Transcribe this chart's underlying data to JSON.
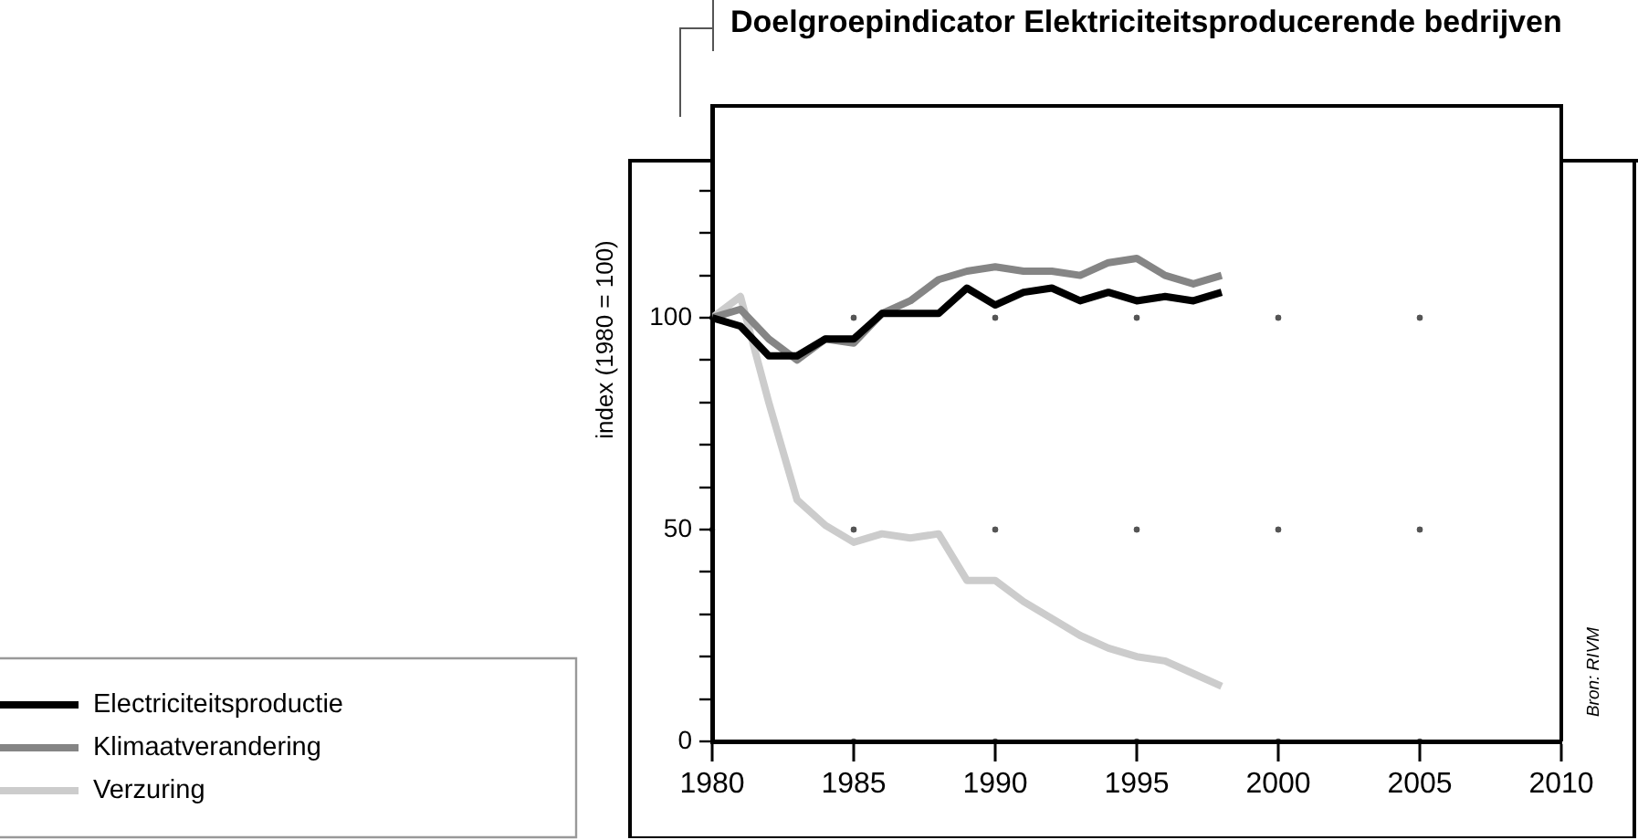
{
  "chart_data": {
    "type": "line",
    "title": "Doelgroepindicator Elektriciteitsproducerende bedrijven",
    "ylabel": "index (1980 = 100)",
    "x": [
      1980,
      1981,
      1982,
      1983,
      1984,
      1985,
      1986,
      1987,
      1988,
      1989,
      1990,
      1991,
      1992,
      1993,
      1994,
      1995,
      1996,
      1997,
      1998
    ],
    "series": [
      {
        "name": "Electriciteitsproductie",
        "color": "#000000",
        "values": [
          100,
          98,
          91,
          91,
          95,
          95,
          101,
          101,
          101,
          107,
          103,
          106,
          107,
          104,
          106,
          104,
          105,
          104,
          106
        ]
      },
      {
        "name": "Klimaatverandering",
        "color": "#858585",
        "values": [
          100,
          102,
          95,
          90,
          95,
          94,
          101,
          104,
          109,
          111,
          112,
          111,
          111,
          110,
          113,
          114,
          110,
          108,
          110
        ]
      },
      {
        "name": "Verzuring",
        "color": "#cccccc",
        "values": [
          100,
          105,
          80,
          57,
          51,
          47,
          49,
          48,
          49,
          38,
          38,
          33,
          29,
          25,
          22,
          20,
          19,
          16,
          13
        ]
      }
    ],
    "xlim": [
      1980,
      2010
    ],
    "xticks": [
      1980,
      1985,
      1990,
      1995,
      2000,
      2005,
      2010
    ],
    "ylim": [
      0,
      150
    ],
    "yticks": [
      0,
      {
        "value": 10,
        "label": null
      },
      {
        "value": 20,
        "label": null
      },
      {
        "value": 30,
        "label": null
      },
      {
        "value": 40,
        "label": null
      },
      50,
      {
        "value": 60,
        "label": null
      },
      {
        "value": 70,
        "label": null
      },
      {
        "value": 80,
        "label": null
      },
      {
        "value": 90,
        "label": null
      },
      100,
      {
        "value": 110,
        "label": null
      },
      {
        "value": 120,
        "label": null
      },
      {
        "value": 130,
        "label": null
      }
    ],
    "grid": true,
    "legend": "bottom left",
    "marker": "none",
    "line_style": "solid",
    "annotations": [
      "Bron: RIVM"
    ]
  }
}
